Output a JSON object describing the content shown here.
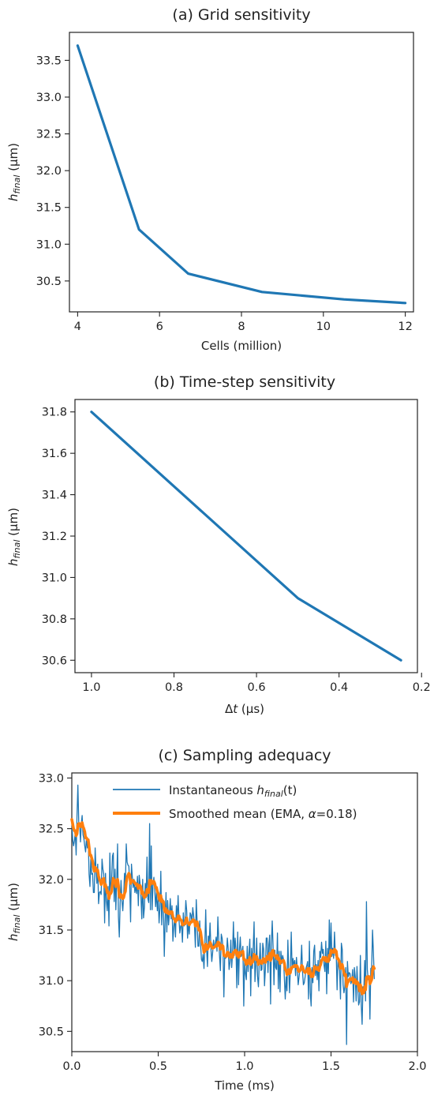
{
  "chart_data": [
    {
      "type": "line",
      "title": "(a) Grid sensitivity",
      "xlabel": "Cells (million)",
      "ylabel": "h_final (μm)",
      "ylabel_main": "h",
      "ylabel_sub": "final",
      "ylabel_unit": " (μm)",
      "xlim": [
        3.8,
        12.2
      ],
      "ylim": [
        30.08,
        33.88
      ],
      "xticks": [
        4,
        6,
        8,
        10,
        12
      ],
      "yticks": [
        30.5,
        31.0,
        31.5,
        32.0,
        32.5,
        33.0,
        33.5
      ],
      "grid": false,
      "color": "#1f77b4",
      "series": [
        {
          "x": [
            4,
            5.5,
            6.7,
            8.5,
            10.5,
            12
          ],
          "values": [
            33.7,
            31.2,
            30.6,
            30.35,
            30.25,
            30.2
          ]
        }
      ]
    },
    {
      "type": "line",
      "title": "(b) Time-step sensitivity",
      "xlabel": "Δt (μs)",
      "xlabel_main": "Δ",
      "xlabel_var": "t",
      "xlabel_unit": " (μs)",
      "ylabel": "h_final (μm)",
      "ylabel_main": "h",
      "ylabel_sub": "final",
      "ylabel_unit": " (μm)",
      "x_inverted": true,
      "xlim": [
        1.04,
        0.21
      ],
      "ylim": [
        30.54,
        31.86
      ],
      "xticks": [
        1.0,
        0.8,
        0.6,
        0.4,
        0.2
      ],
      "yticks": [
        30.6,
        30.8,
        31.0,
        31.2,
        31.4,
        31.6,
        31.8
      ],
      "grid": false,
      "color": "#1f77b4",
      "series": [
        {
          "x": [
            1.0,
            0.5,
            0.25
          ],
          "values": [
            31.8,
            30.9,
            30.6
          ]
        }
      ]
    },
    {
      "type": "line",
      "title": "(c) Sampling adequacy",
      "xlabel": "Time (ms)",
      "ylabel": "h_final (μm)",
      "ylabel_main": "h",
      "ylabel_sub": "final",
      "ylabel_unit": " (μm)",
      "xlim": [
        0.0,
        2.0
      ],
      "ylim": [
        30.3,
        33.05
      ],
      "xticks": [
        0.0,
        0.5,
        1.0,
        1.5,
        2.0
      ],
      "yticks": [
        30.5,
        31.0,
        31.5,
        32.0,
        32.5,
        33.0
      ],
      "grid": false,
      "legend": "upper center",
      "series": [
        {
          "name": "Instantaneous h_final(t)",
          "legend_main": "Instantaneous ",
          "legend_var": "h",
          "legend_sub": "final",
          "legend_tail": "(t)",
          "color": "#1f77b4",
          "x_step": 0.005,
          "values": [
            32.59,
            32.39,
            32.33,
            32.38,
            32.46,
            32.24,
            32.63,
            32.93,
            32.56,
            32.54,
            32.37,
            32.55,
            32.63,
            32.44,
            32.4,
            32.33,
            32.27,
            32.41,
            32.31,
            32.4,
            32.05,
            31.93,
            32.21,
            32.05,
            32.06,
            31.87,
            31.87,
            32.31,
            32.08,
            31.96,
            32.15,
            31.76,
            31.87,
            31.88,
            31.85,
            32.2,
            32.1,
            32.05,
            31.57,
            32.06,
            31.79,
            31.69,
            31.93,
            31.54,
            32.26,
            31.86,
            31.97,
            32.23,
            32.26,
            31.78,
            32.1,
            31.7,
            31.97,
            32.35,
            31.63,
            31.43,
            31.77,
            31.99,
            31.79,
            31.69,
            31.84,
            32.06,
            31.95,
            32.35,
            32.17,
            32.14,
            32.13,
            31.94,
            31.58,
            32.15,
            32.02,
            31.92,
            32.0,
            31.87,
            31.93,
            31.86,
            32.03,
            31.74,
            32.04,
            31.96,
            31.83,
            31.61,
            32.0,
            31.62,
            31.72,
            31.96,
            31.82,
            32.22,
            31.81,
            31.77,
            32.55,
            31.7,
            32.33,
            31.7,
            31.95,
            32.02,
            31.89,
            31.73,
            31.88,
            31.69,
            31.81,
            31.57,
            31.72,
            32.08,
            31.55,
            31.81,
            31.72,
            31.24,
            31.59,
            31.87,
            31.48,
            31.79,
            31.55,
            31.66,
            31.81,
            31.61,
            31.74,
            31.39,
            31.53,
            31.62,
            31.43,
            31.74,
            31.6,
            31.84,
            31.61,
            31.47,
            31.54,
            31.55,
            31.38,
            31.67,
            31.54,
            31.59,
            31.79,
            31.69,
            31.42,
            31.58,
            31.46,
            31.67,
            31.65,
            31.57,
            31.72,
            31.64,
            31.54,
            31.33,
            31.8,
            31.58,
            31.34,
            31.34,
            31.59,
            31.36,
            31.21,
            31.19,
            31.26,
            31.12,
            31.35,
            31.7,
            31.32,
            31.14,
            31.44,
            31.38,
            31.57,
            31.32,
            31.19,
            31.28,
            31.4,
            31.32,
            31.36,
            31.43,
            31.29,
            31.63,
            31.42,
            31.25,
            31.1,
            31.46,
            31.42,
            31.32,
            30.84,
            31.25,
            31.22,
            31.25,
            31.42,
            31.31,
            31.11,
            31.18,
            31.4,
            31.13,
            31.27,
            31.58,
            31.25,
            31.42,
            31.3,
            30.93,
            31.48,
            30.96,
            31.3,
            31.43,
            31.24,
            31.29,
            31.34,
            30.75,
            31.2,
            31.07,
            31.01,
            31.34,
            31.09,
            31.27,
            31.41,
            30.85,
            31.32,
            31.12,
            31.35,
            31.58,
            30.99,
            31.15,
            31.42,
            31.04,
            30.94,
            31.19,
            31.37,
            31.1,
            31.11,
            31.37,
            31.31,
            30.95,
            31.11,
            31.42,
            31.42,
            31.08,
            31.36,
            31.45,
            30.77,
            31.36,
            31.59,
            31.33,
            30.96,
            31.3,
            31.13,
            31.11,
            31.47,
            30.92,
            31.29,
            30.89,
            31.29,
            31.17,
            31.25,
            31.21,
            31.02,
            30.82,
            31.04,
            30.9,
            31.4,
            31.13,
            30.88,
            31.12,
            31.48,
            31.11,
            31.22,
            31.15,
            31.2,
            31.05,
            31.23,
            31.11,
            30.96,
            31.04,
            31.12,
            31.15,
            31.35,
            31.09,
            30.96,
            30.98,
            31.04,
            31.12,
            31.15,
            31.19,
            30.82,
            31.39,
            30.88,
            30.75,
            31.13,
            30.98,
            31.29,
            31.35,
            31.05,
            31.16,
            31.01,
            31.2,
            30.9,
            31.29,
            31.23,
            31.38,
            31.27,
            31.31,
            31.15,
            31.09,
            31.39,
            30.87,
            31.32,
            31.07,
            31.6,
            31.2,
            31.57,
            31.24,
            31.32,
            31.22,
            31.48,
            31.25,
            31.26,
            30.91,
            31.21,
            31.14,
            31.1,
            30.82,
            31.37,
            31.31,
            30.96,
            30.88,
            30.94,
            31.13,
            30.37,
            31.19,
            31.04,
            31.08,
            31.07,
            30.97,
            31.0,
            31.11,
            30.79,
            31.13,
            31.04,
            30.8,
            31.14,
            30.93,
            30.76,
            30.79,
            31.25,
            30.76,
            30.57,
            30.94,
            30.9,
            31.2,
            30.8,
            31.78,
            31.11,
            31.01,
            31.05,
            30.62,
            31.12,
            31.13,
            31.5,
            31.28,
            31.02
          ]
        },
        {
          "name": "Smoothed mean (EMA, α=0.18)",
          "legend_main": "Smoothed mean (EMA, ",
          "legend_var": "α",
          "legend_tail": "=0.18)",
          "color": "#ff7f0e",
          "x_step": 0.005,
          "values": [
            32.59,
            32.55,
            32.5,
            32.48,
            32.48,
            32.43,
            32.45,
            32.54,
            32.55,
            32.55,
            32.52,
            32.52,
            32.56,
            32.52,
            32.5,
            32.47,
            32.41,
            32.41,
            32.39,
            32.39,
            32.32,
            32.24,
            32.24,
            32.21,
            32.18,
            32.12,
            32.08,
            32.12,
            32.11,
            32.08,
            32.09,
            32.03,
            32.0,
            31.98,
            31.95,
            31.99,
            32.0,
            32.01,
            31.93,
            31.95,
            31.91,
            31.87,
            31.88,
            31.81,
            31.86,
            31.86,
            31.88,
            31.95,
            32.01,
            31.97,
            31.99,
            31.93,
            31.94,
            32.0,
            31.94,
            31.83,
            31.82,
            31.85,
            31.84,
            31.81,
            31.82,
            31.86,
            31.88,
            31.97,
            32.02,
            32.04,
            32.06,
            32.04,
            31.96,
            31.98,
            31.99,
            31.98,
            31.98,
            31.96,
            31.96,
            31.94,
            31.95,
            31.91,
            31.93,
            31.94,
            31.92,
            31.86,
            31.88,
            31.84,
            31.82,
            31.84,
            31.84,
            31.9,
            31.89,
            31.87,
            31.99,
            31.95,
            31.99,
            31.97,
            31.96,
            31.98,
            31.96,
            31.92,
            31.92,
            31.88,
            31.86,
            31.81,
            31.79,
            31.84,
            31.78,
            31.79,
            31.78,
            31.7,
            31.68,
            31.71,
            31.67,
            31.69,
            31.66,
            31.66,
            31.68,
            31.67,
            31.68,
            31.63,
            31.61,
            31.61,
            31.58,
            31.6,
            31.6,
            31.64,
            31.64,
            31.61,
            31.6,
            31.59,
            31.55,
            31.56,
            31.56,
            31.56,
            31.6,
            31.62,
            31.57,
            31.57,
            31.55,
            31.57,
            31.58,
            31.58,
            31.6,
            31.6,
            31.59,
            31.54,
            31.58,
            31.58,
            31.54,
            31.5,
            31.51,
            31.48,
            31.42,
            31.37,
            31.34,
            31.28,
            31.29,
            31.36,
            31.35,
            31.31,
            31.33,
            31.34,
            31.38,
            31.36,
            31.33,
            31.32,
            31.33,
            31.33,
            31.34,
            31.35,
            31.34,
            31.38,
            31.38,
            31.36,
            31.31,
            31.33,
            31.35,
            31.34,
            31.25,
            31.25,
            31.24,
            31.24,
            31.28,
            31.28,
            31.25,
            31.23,
            31.26,
            31.23,
            31.23,
            31.28,
            31.28,
            31.3,
            31.3,
            31.25,
            31.28,
            31.23,
            31.24,
            31.28,
            31.28,
            31.28,
            31.29,
            31.21,
            31.21,
            31.19,
            31.16,
            31.2,
            31.17,
            31.19,
            31.23,
            31.16,
            31.19,
            31.18,
            31.21,
            31.26,
            31.22,
            31.21,
            31.24,
            31.2,
            31.16,
            31.17,
            31.2,
            31.18,
            31.17,
            31.2,
            31.22,
            31.19,
            31.18,
            31.21,
            31.24,
            31.21,
            31.23,
            31.27,
            31.2,
            31.22,
            31.29,
            31.3,
            31.25,
            31.25,
            31.24,
            31.22,
            31.25,
            31.21,
            31.22,
            31.17,
            31.19,
            31.19,
            31.2,
            31.2,
            31.17,
            31.11,
            31.1,
            31.06,
            31.1,
            31.11,
            31.07,
            31.08,
            31.13,
            31.13,
            31.14,
            31.14,
            31.15,
            31.14,
            31.15,
            31.14,
            31.1,
            31.09,
            31.1,
            31.11,
            31.15,
            31.14,
            31.11,
            31.09,
            31.08,
            31.09,
            31.1,
            31.12,
            31.07,
            31.12,
            31.09,
            31.04,
            31.06,
            31.04,
            31.09,
            31.14,
            31.12,
            31.13,
            31.11,
            31.13,
            31.1,
            31.14,
            31.16,
            31.2,
            31.21,
            31.23,
            31.22,
            31.2,
            31.23,
            31.19,
            31.21,
            31.19,
            31.25,
            31.24,
            31.3,
            31.28,
            31.29,
            31.28,
            31.31,
            31.3,
            31.29,
            31.22,
            31.22,
            31.2,
            31.18,
            31.12,
            31.14,
            31.16,
            31.12,
            31.08,
            31.05,
            31.06,
            30.94,
            30.98,
            30.99,
            31.01,
            31.02,
            31.01,
            31.01,
            31.03,
            30.98,
            31.0,
            31.01,
            30.97,
            30.99,
            30.98,
            30.94,
            30.9,
            30.96,
            30.93,
            30.87,
            30.88,
            30.88,
            30.94,
            30.91,
            31.03,
            31.04,
            31.04,
            31.04,
            30.97,
            30.99,
            31.01,
            31.1,
            31.14,
            31.12
          ]
        }
      ]
    }
  ]
}
